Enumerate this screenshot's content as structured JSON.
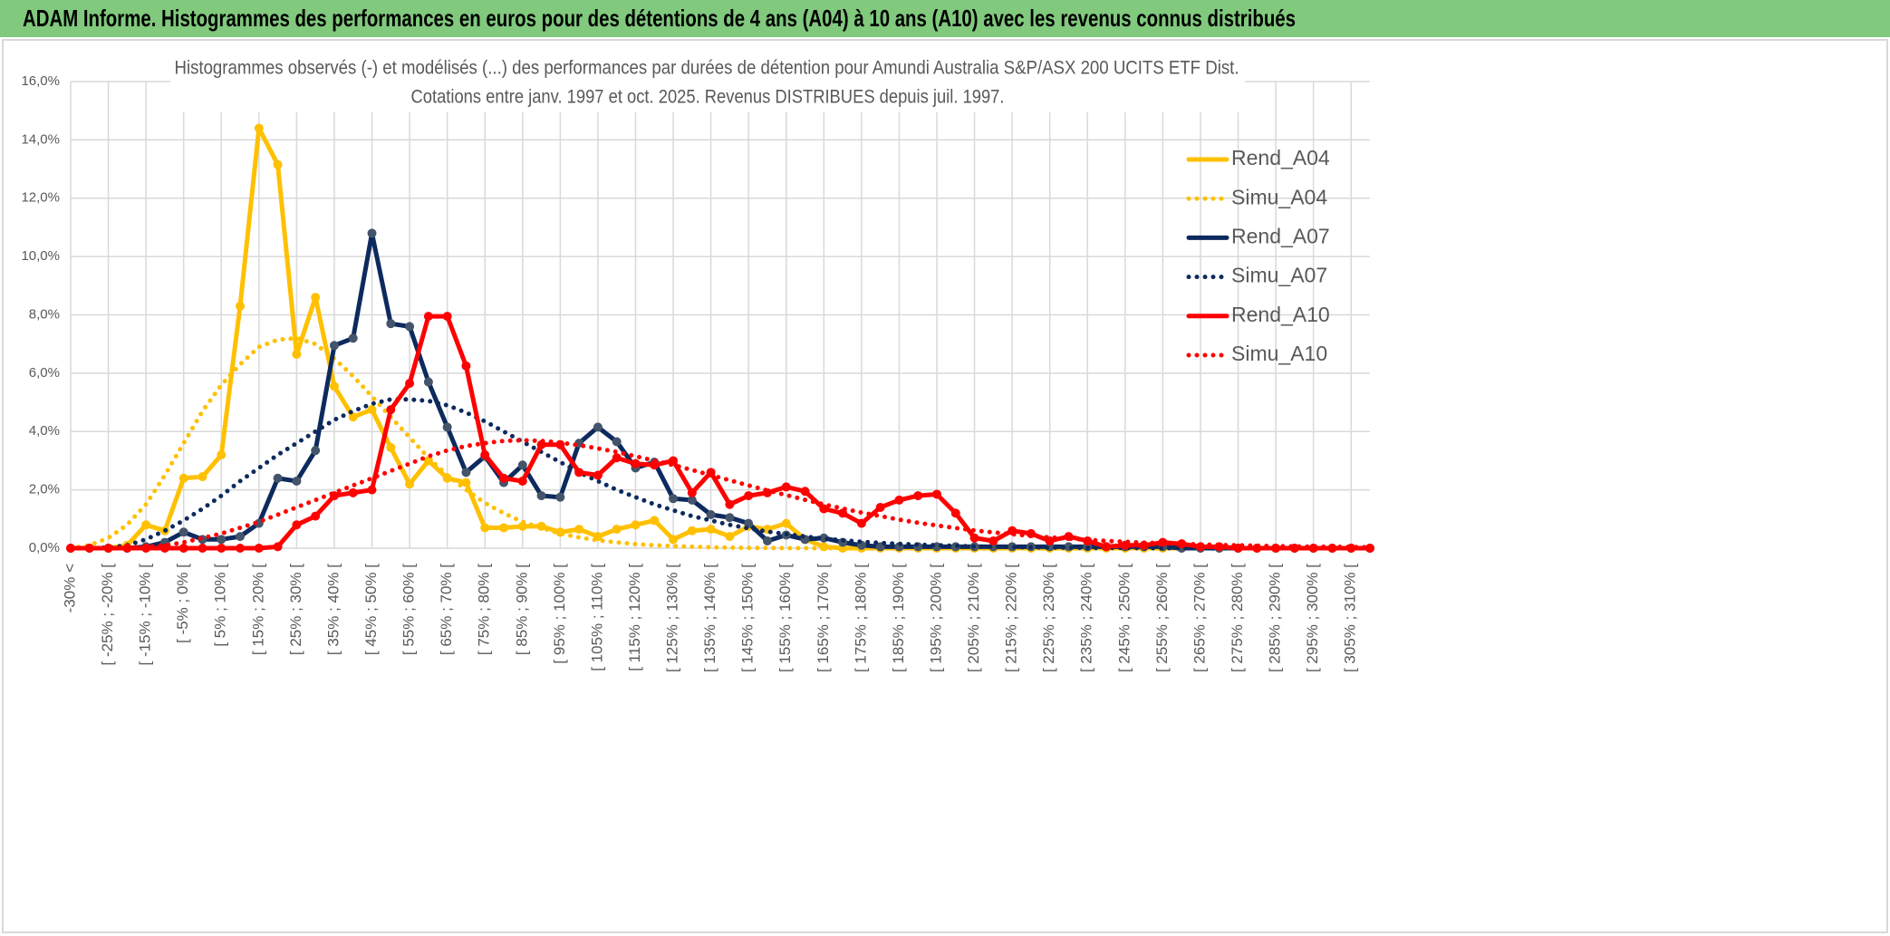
{
  "header": {
    "title": "ADAM Informe. Histogrammes des performances en euros pour des détentions de 4 ans (A04) à 10 ans (A10) avec les revenus connus distribués"
  },
  "chart_data": {
    "type": "line",
    "title": "Histogrammes observés (-) et modélisés (...) des performances par durées de détention pour Amundi Australia S&P/ASX 200 UCITS ETF Dist.",
    "subtitle": "Cotations entre janv. 1997 et oct. 2025. Revenus DISTRIBUES depuis juil. 1997.",
    "categories": [
      "-30% <",
      null,
      "[ -25% ; -20% [",
      null,
      "[ -15% ; -10% [",
      null,
      "[ -5% ; 0% [",
      null,
      "[ 5% ; 10% [",
      null,
      "[ 15% ; 20% [",
      null,
      "[ 25% ; 30% [",
      null,
      "[ 35% ; 40% [",
      null,
      "[ 45% ; 50% [",
      null,
      "[ 55% ; 60% [",
      null,
      "[ 65% ; 70% [",
      null,
      "[ 75% ; 80% [",
      null,
      "[ 85% ; 90% [",
      null,
      "[ 95% ; 100% [",
      null,
      "[ 105% ; 110% [",
      null,
      "[ 115% ; 120% [",
      null,
      "[ 125% ; 130% [",
      null,
      "[ 135% ; 140% [",
      null,
      "[ 145% ; 150% [",
      null,
      "[ 155% ; 160% [",
      null,
      "[ 165% ; 170% [",
      null,
      "[ 175% ; 180% [",
      null,
      "[ 185% ; 190% [",
      null,
      "[ 195% ; 200% [",
      null,
      "[ 205% ; 210% [",
      null,
      "[ 215% ; 220% [",
      null,
      "[ 225% ; 230% [",
      null,
      "[ 235% ; 240% [",
      null,
      "[ 245% ; 250% [",
      null,
      "[ 255% ; 260% [",
      null,
      "[ 265% ; 270% [",
      null,
      "[ 275% ; 280% [",
      null,
      "[ 285% ; 290% [",
      null,
      "[ 295% ; 300% [",
      null,
      "[ 305% ; 310% [",
      null
    ],
    "series": [
      {
        "name": "Rend_A04",
        "color": "#ffc000",
        "dash": "solid",
        "values": [
          0,
          0,
          0,
          0.1,
          0.8,
          0.6,
          2.4,
          2.45,
          3.2,
          8.3,
          14.4,
          13.15,
          6.65,
          8.6,
          5.55,
          4.5,
          4.75,
          3.45,
          2.2,
          3.0,
          2.4,
          2.25,
          0.7,
          0.7,
          0.75,
          0.75,
          0.55,
          0.65,
          0.4,
          0.65,
          0.8,
          0.95,
          0.3,
          0.6,
          0.65,
          0.4,
          0.75,
          0.65,
          0.85,
          0.3,
          0.05,
          0,
          0,
          0,
          0,
          0,
          0,
          0,
          0,
          0,
          0,
          0,
          0,
          0,
          0,
          0,
          0,
          0,
          0,
          0,
          0,
          0,
          0,
          0,
          0,
          0,
          0,
          0,
          0,
          0
        ]
      },
      {
        "name": "Simu_A04",
        "color": "#ffc000",
        "dash": "dotted",
        "values": [
          0,
          0.1,
          0.35,
          0.8,
          1.5,
          2.5,
          3.6,
          4.7,
          5.6,
          6.3,
          6.9,
          7.15,
          7.2,
          7.0,
          6.5,
          5.9,
          5.2,
          4.5,
          3.8,
          3.1,
          2.5,
          2.0,
          1.55,
          1.2,
          0.9,
          0.7,
          0.5,
          0.37,
          0.27,
          0.2,
          0.14,
          0.1,
          0.07,
          0.05,
          0.03,
          0.02,
          0.01,
          0.01,
          0,
          0,
          0,
          0,
          0,
          0,
          0,
          0,
          0,
          0,
          0,
          0,
          0,
          0,
          0,
          0,
          0,
          0,
          0,
          0,
          0,
          0,
          0,
          0,
          0,
          0,
          0,
          0,
          0,
          0,
          0,
          0
        ]
      },
      {
        "name": "Rend_A07",
        "color": "#0d2a5e",
        "dash": "solid",
        "values": [
          0,
          0,
          0,
          0,
          0.05,
          0.2,
          0.55,
          0.3,
          0.3,
          0.4,
          0.85,
          2.4,
          2.3,
          3.35,
          6.95,
          7.2,
          10.8,
          7.7,
          7.6,
          5.7,
          4.15,
          2.6,
          3.15,
          2.25,
          2.85,
          1.8,
          1.75,
          3.6,
          4.15,
          3.65,
          2.75,
          2.95,
          1.7,
          1.65,
          1.15,
          1.05,
          0.85,
          0.25,
          0.45,
          0.3,
          0.35,
          0.2,
          0.1,
          0.05,
          0.05,
          0.05,
          0.05,
          0.05,
          0.05,
          0.05,
          0.05,
          0.05,
          0.05,
          0.05,
          0.05,
          0.05,
          0.05,
          0.05,
          0.05,
          0,
          0,
          0,
          0,
          0,
          0,
          0,
          0,
          0,
          0,
          0
        ]
      },
      {
        "name": "Simu_A07",
        "color": "#0d2a5e",
        "dash": "dotted",
        "values": [
          0,
          0,
          0.02,
          0.1,
          0.3,
          0.6,
          0.95,
          1.35,
          1.8,
          2.3,
          2.75,
          3.2,
          3.6,
          4.0,
          4.4,
          4.7,
          4.95,
          5.1,
          5.1,
          5.05,
          4.9,
          4.65,
          4.35,
          4.0,
          3.65,
          3.3,
          2.95,
          2.6,
          2.3,
          2.0,
          1.75,
          1.5,
          1.3,
          1.1,
          0.95,
          0.8,
          0.68,
          0.57,
          0.48,
          0.4,
          0.33,
          0.27,
          0.22,
          0.18,
          0.15,
          0.12,
          0.1,
          0.08,
          0.06,
          0.05,
          0.04,
          0.03,
          0.02,
          0.02,
          0.01,
          0.01,
          0.01,
          0,
          0,
          0,
          0,
          0,
          0,
          0,
          0,
          0,
          0,
          0,
          0,
          0
        ]
      },
      {
        "name": "Rend_A10",
        "color": "#ff0000",
        "dash": "solid",
        "values": [
          0,
          0,
          0,
          0,
          0,
          0,
          0,
          0,
          0,
          0,
          0,
          0.05,
          0.8,
          1.1,
          1.8,
          1.9,
          2.0,
          4.75,
          5.65,
          7.95,
          7.95,
          6.25,
          3.2,
          2.4,
          2.3,
          3.55,
          3.55,
          2.6,
          2.5,
          3.1,
          2.9,
          2.85,
          3.0,
          1.9,
          2.6,
          1.5,
          1.8,
          1.9,
          2.1,
          1.95,
          1.35,
          1.2,
          0.85,
          1.4,
          1.65,
          1.8,
          1.85,
          1.2,
          0.35,
          0.25,
          0.6,
          0.5,
          0.25,
          0.4,
          0.25,
          0.05,
          0.1,
          0.1,
          0.2,
          0.15,
          0.05,
          0.05,
          0,
          0,
          0,
          0,
          0,
          0,
          0,
          0
        ]
      },
      {
        "name": "Simu_A10",
        "color": "#ff0000",
        "dash": "dotted",
        "values": [
          0,
          0,
          0,
          0.02,
          0.05,
          0.1,
          0.2,
          0.35,
          0.5,
          0.7,
          0.9,
          1.15,
          1.4,
          1.65,
          1.9,
          2.15,
          2.4,
          2.65,
          2.9,
          3.15,
          3.35,
          3.5,
          3.6,
          3.68,
          3.7,
          3.68,
          3.62,
          3.53,
          3.42,
          3.3,
          3.15,
          3.0,
          2.85,
          2.68,
          2.5,
          2.33,
          2.15,
          1.98,
          1.82,
          1.66,
          1.5,
          1.36,
          1.22,
          1.1,
          0.98,
          0.87,
          0.78,
          0.69,
          0.61,
          0.54,
          0.48,
          0.42,
          0.37,
          0.33,
          0.29,
          0.25,
          0.22,
          0.19,
          0.17,
          0.15,
          0.13,
          0.11,
          0.1,
          0.08,
          0.07,
          0.06,
          0.05,
          0.05,
          0.04,
          0.03
        ]
      }
    ],
    "ylim": [
      0,
      16
    ],
    "yticks": [
      {
        "value": 0,
        "label": "0,0%"
      },
      {
        "value": 2,
        "label": "2,0%"
      },
      {
        "value": 4,
        "label": "4,0%"
      },
      {
        "value": 6,
        "label": "6,0%"
      },
      {
        "value": 8,
        "label": "8,0%"
      },
      {
        "value": 10,
        "label": "10,0%"
      },
      {
        "value": 12,
        "label": "12,0%"
      },
      {
        "value": 14,
        "label": "14,0%"
      },
      {
        "value": 16,
        "label": "16,0%"
      }
    ],
    "grid": true,
    "legend": "right"
  }
}
